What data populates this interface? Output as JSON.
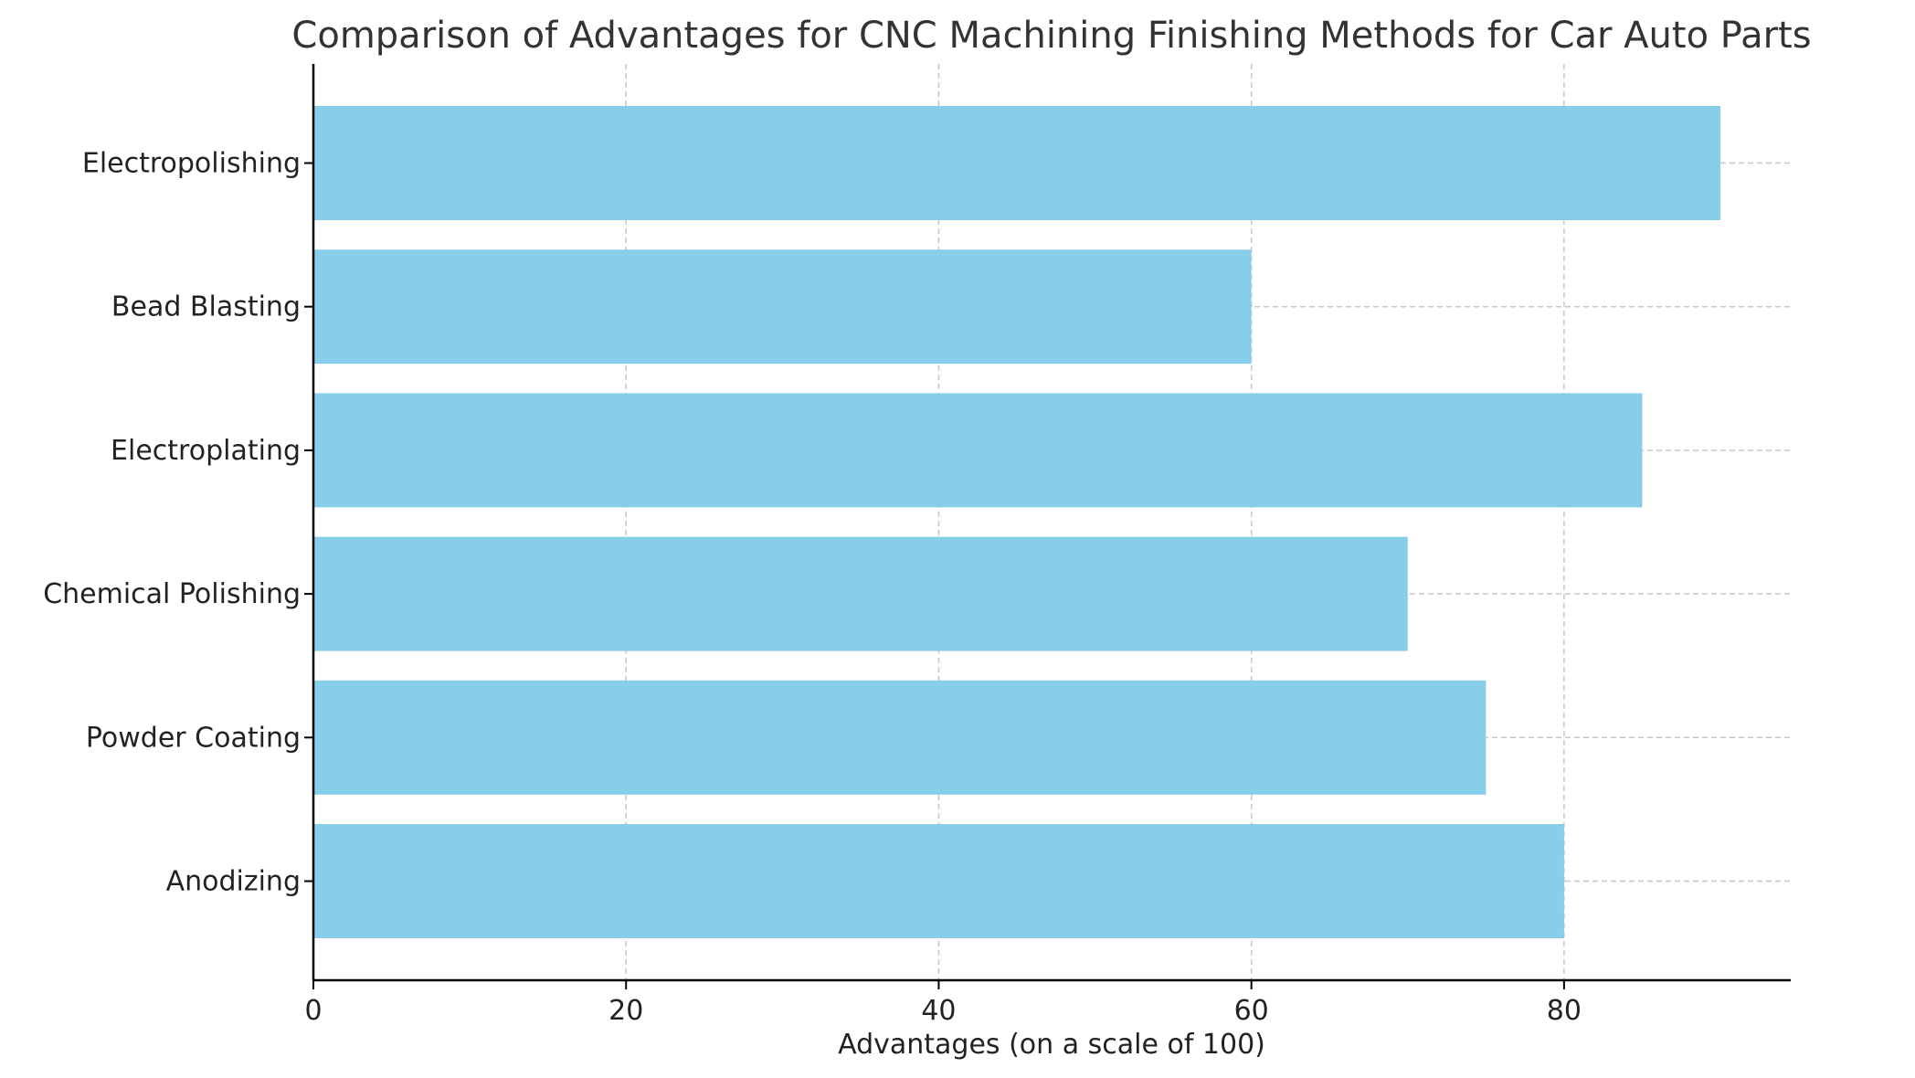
{
  "chart_data": {
    "type": "bar",
    "orientation": "horizontal",
    "title": "Comparison of Advantages for CNC Machining Finishing Methods for Car Auto Parts",
    "xlabel": "Advantages (on a scale of 100)",
    "ylabel": "",
    "categories": [
      "Anodizing",
      "Powder Coating",
      "Chemical Polishing",
      "Electroplating",
      "Bead Blasting",
      "Electropolishing"
    ],
    "values": [
      80,
      75,
      70,
      85,
      60,
      90
    ],
    "xlim": [
      0,
      94.5
    ],
    "xticks": [
      0,
      20,
      40,
      60,
      80
    ],
    "grid": true,
    "bar_color": "#87CEEB"
  }
}
